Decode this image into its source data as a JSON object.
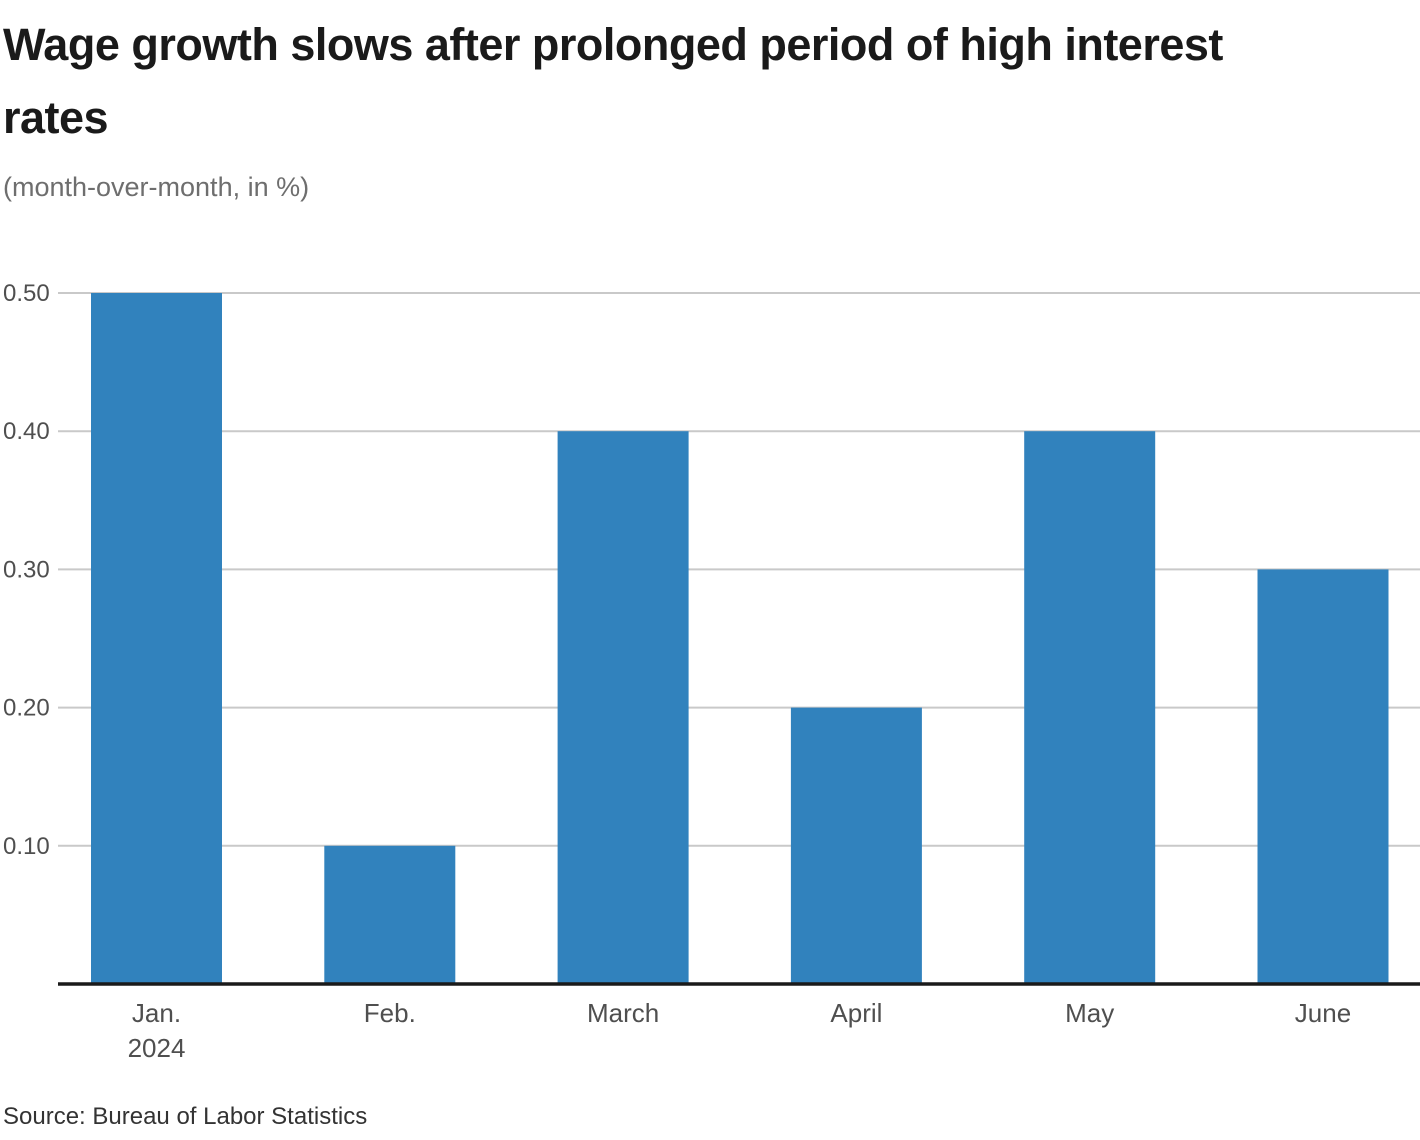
{
  "header": {
    "title_lines": [
      "Wage growth slows after prolonged period of high interest",
      "rates"
    ],
    "subtitle": "(month-over-month, in %)"
  },
  "footer": {
    "source": "Source: Bureau of Labor Statistics"
  },
  "chart_data": {
    "type": "bar",
    "title": "Wage growth slows after prolonged period of high interest rates",
    "subtitle": "(month-over-month, in %)",
    "categories": [
      "Jan.",
      "Feb.",
      "March",
      "April",
      "May",
      "June"
    ],
    "category_sublabels": [
      "2024",
      "",
      "",
      "",
      "",
      ""
    ],
    "values": [
      0.5,
      0.1,
      0.4,
      0.2,
      0.4,
      0.3
    ],
    "yticks": [
      0.1,
      0.2,
      0.3,
      0.4,
      0.5
    ],
    "ytick_labels": [
      "0.10",
      "0.20",
      "0.30",
      "0.40",
      "0.50"
    ],
    "ylim": [
      0,
      0.54
    ],
    "xlabel": "",
    "ylabel": "",
    "grid": true,
    "legend_position": "none",
    "source": "Source: Bureau of Labor Statistics",
    "colors": {
      "bar": "#3182bd",
      "grid": "#c9c9c9",
      "axis": "#1a1a1a",
      "tick_text": "#4f4f4f",
      "title_text": "#1a1a1a",
      "subtitle_text": "#6e6e6e",
      "source_text": "#333333"
    }
  }
}
